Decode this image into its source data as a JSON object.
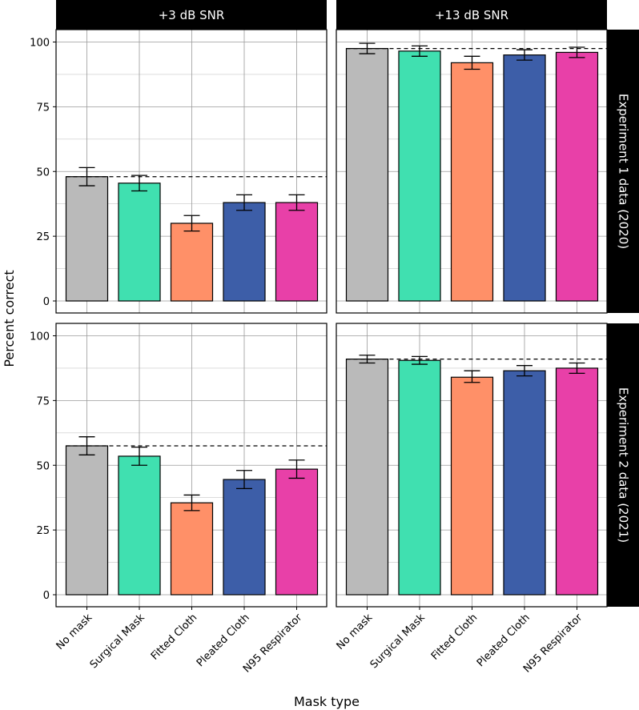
{
  "chart_data": {
    "type": "bar",
    "xlabel": "Mask type",
    "ylabel": "Percent correct",
    "ylim": [
      0,
      100
    ],
    "yticks": [
      0,
      25,
      50,
      75,
      100
    ],
    "categories": [
      "No mask",
      "Surgical Mask",
      "Fitted Cloth",
      "Pleated Cloth",
      "N95 Respirator"
    ],
    "colors": [
      "#bababa",
      "#40e0b0",
      "#ff9068",
      "#3d5ea8",
      "#e840a8"
    ],
    "column_facets": [
      "+3 dB SNR",
      "+13 dB SNR"
    ],
    "row_facets": [
      "Experiment 1 data (2020)",
      "Experiment 2 data (2021)"
    ],
    "panels": [
      {
        "row": "Experiment 1 data (2020)",
        "col": "+3 dB SNR",
        "values": [
          48,
          45.5,
          30,
          38,
          38
        ],
        "error_low": [
          44.5,
          42.5,
          27,
          35,
          35
        ],
        "error_high": [
          51.5,
          48.5,
          33,
          41,
          41
        ],
        "reference": 48
      },
      {
        "row": "Experiment 1 data (2020)",
        "col": "+13 dB SNR",
        "values": [
          97.5,
          96.5,
          92,
          95,
          96
        ],
        "error_low": [
          95.5,
          94.5,
          89.5,
          93,
          94
        ],
        "error_high": [
          99.5,
          98.5,
          94.5,
          97,
          98
        ],
        "reference": 97.5
      },
      {
        "row": "Experiment 2 data (2021)",
        "col": "+3 dB SNR",
        "values": [
          57.5,
          53.5,
          35.5,
          44.5,
          48.5
        ],
        "error_low": [
          54,
          50,
          32.5,
          41,
          45
        ],
        "error_high": [
          61,
          57,
          38.5,
          48,
          52
        ],
        "reference": 57.5
      },
      {
        "row": "Experiment 2 data (2021)",
        "col": "+13 dB SNR",
        "values": [
          91,
          90.5,
          84,
          86.5,
          87.5
        ],
        "error_low": [
          89.5,
          89,
          82,
          84.5,
          85.5
        ],
        "error_high": [
          92.5,
          92,
          86.5,
          88.5,
          89.5
        ],
        "reference": 91
      }
    ]
  }
}
